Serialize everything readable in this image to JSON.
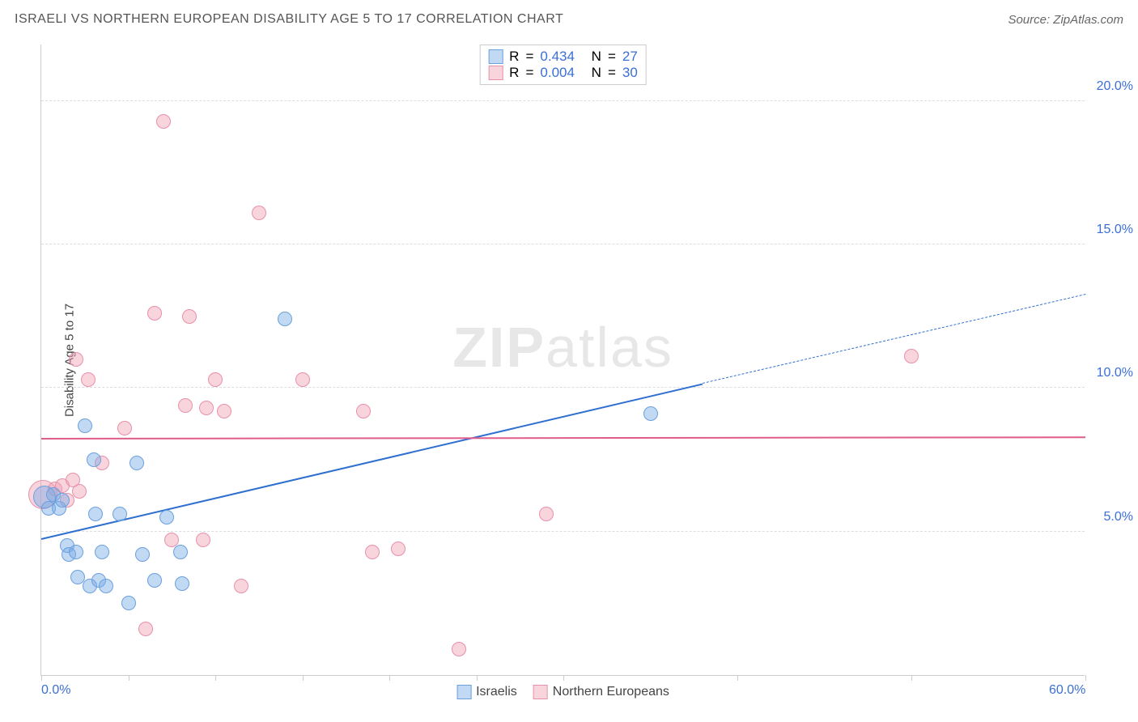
{
  "title": "ISRAELI VS NORTHERN EUROPEAN DISABILITY AGE 5 TO 17 CORRELATION CHART",
  "source": "Source: ZipAtlas.com",
  "watermark_a": "ZIP",
  "watermark_b": "atlas",
  "ylabel": "Disability Age 5 to 17",
  "chart": {
    "type": "scatter",
    "xlim": [
      0,
      60
    ],
    "ylim": [
      0,
      22
    ],
    "xticks": [
      0,
      5,
      10,
      15,
      20,
      25,
      30,
      40,
      50,
      60
    ],
    "xlabels_shown": {
      "0": "0.0%",
      "60": "60.0%"
    },
    "yticks": [
      5,
      10,
      15,
      20
    ],
    "ylabels": {
      "5": "5.0%",
      "10": "10.0%",
      "15": "15.0%",
      "20": "20.0%"
    },
    "grid_color": "#dddddd",
    "axis_color": "#cccccc",
    "background_color": "#ffffff",
    "tick_label_color": "#3b6fd6"
  },
  "series": {
    "israelis": {
      "label": "Israelis",
      "fill": "rgba(120,170,230,0.45)",
      "stroke": "#6aa0dd",
      "trend_color": "#2f6fd0",
      "trend": {
        "x1": 0,
        "y1": 4.8,
        "x2": 38,
        "y2": 10.2,
        "x2_dash": 60,
        "y2_dash": 13.3
      },
      "R_label": "R",
      "R": "0.434",
      "N_label": "N",
      "N": "27",
      "points": [
        {
          "x": 0.2,
          "y": 6.2,
          "r": 14
        },
        {
          "x": 0.4,
          "y": 5.8,
          "r": 9
        },
        {
          "x": 0.7,
          "y": 6.3,
          "r": 9
        },
        {
          "x": 1.0,
          "y": 5.8,
          "r": 9
        },
        {
          "x": 1.2,
          "y": 6.1,
          "r": 9
        },
        {
          "x": 1.5,
          "y": 4.5,
          "r": 9
        },
        {
          "x": 1.6,
          "y": 4.2,
          "r": 9
        },
        {
          "x": 2.0,
          "y": 4.3,
          "r": 9
        },
        {
          "x": 2.1,
          "y": 3.4,
          "r": 9
        },
        {
          "x": 2.5,
          "y": 8.7,
          "r": 9
        },
        {
          "x": 2.8,
          "y": 3.1,
          "r": 9
        },
        {
          "x": 3.0,
          "y": 7.5,
          "r": 9
        },
        {
          "x": 3.1,
          "y": 5.6,
          "r": 9
        },
        {
          "x": 3.3,
          "y": 3.3,
          "r": 9
        },
        {
          "x": 3.5,
          "y": 4.3,
          "r": 9
        },
        {
          "x": 3.7,
          "y": 3.1,
          "r": 9
        },
        {
          "x": 4.5,
          "y": 5.6,
          "r": 9
        },
        {
          "x": 5.0,
          "y": 2.5,
          "r": 9
        },
        {
          "x": 5.5,
          "y": 7.4,
          "r": 9
        },
        {
          "x": 5.8,
          "y": 4.2,
          "r": 9
        },
        {
          "x": 6.5,
          "y": 3.3,
          "r": 9
        },
        {
          "x": 7.2,
          "y": 5.5,
          "r": 9
        },
        {
          "x": 8.0,
          "y": 4.3,
          "r": 9
        },
        {
          "x": 8.1,
          "y": 3.2,
          "r": 9
        },
        {
          "x": 14.0,
          "y": 12.4,
          "r": 9
        },
        {
          "x": 35.0,
          "y": 9.1,
          "r": 9
        }
      ]
    },
    "northern_europeans": {
      "label": "Northern Europeans",
      "fill": "rgba(240,160,180,0.45)",
      "stroke": "#e890ab",
      "trend_color": "#e05c8a",
      "trend": {
        "x1": 0,
        "y1": 8.3,
        "x2": 60,
        "y2": 8.35
      },
      "R_label": "R",
      "R": "0.004",
      "N_label": "N",
      "N": "30",
      "points": [
        {
          "x": 0.1,
          "y": 6.3,
          "r": 18
        },
        {
          "x": 0.8,
          "y": 6.5,
          "r": 9
        },
        {
          "x": 1.2,
          "y": 6.6,
          "r": 9
        },
        {
          "x": 1.5,
          "y": 6.1,
          "r": 9
        },
        {
          "x": 1.8,
          "y": 6.8,
          "r": 9
        },
        {
          "x": 2.0,
          "y": 11.0,
          "r": 9
        },
        {
          "x": 2.2,
          "y": 6.4,
          "r": 9
        },
        {
          "x": 2.7,
          "y": 10.3,
          "r": 9
        },
        {
          "x": 3.5,
          "y": 7.4,
          "r": 9
        },
        {
          "x": 4.8,
          "y": 8.6,
          "r": 9
        },
        {
          "x": 6.0,
          "y": 1.6,
          "r": 9
        },
        {
          "x": 6.5,
          "y": 12.6,
          "r": 9
        },
        {
          "x": 7.0,
          "y": 19.3,
          "r": 9
        },
        {
          "x": 7.5,
          "y": 4.7,
          "r": 9
        },
        {
          "x": 8.3,
          "y": 9.4,
          "r": 9
        },
        {
          "x": 8.5,
          "y": 12.5,
          "r": 9
        },
        {
          "x": 9.3,
          "y": 4.7,
          "r": 9
        },
        {
          "x": 9.5,
          "y": 9.3,
          "r": 9
        },
        {
          "x": 10.0,
          "y": 10.3,
          "r": 9
        },
        {
          "x": 10.5,
          "y": 9.2,
          "r": 9
        },
        {
          "x": 11.5,
          "y": 3.1,
          "r": 9
        },
        {
          "x": 12.5,
          "y": 16.1,
          "r": 9
        },
        {
          "x": 15.0,
          "y": 10.3,
          "r": 9
        },
        {
          "x": 18.5,
          "y": 9.2,
          "r": 9
        },
        {
          "x": 19.0,
          "y": 4.3,
          "r": 9
        },
        {
          "x": 20.5,
          "y": 4.4,
          "r": 9
        },
        {
          "x": 24.0,
          "y": 0.9,
          "r": 9
        },
        {
          "x": 29.0,
          "y": 5.6,
          "r": 9
        },
        {
          "x": 50.0,
          "y": 11.1,
          "r": 9
        }
      ]
    }
  },
  "legend_top_eq": "="
}
